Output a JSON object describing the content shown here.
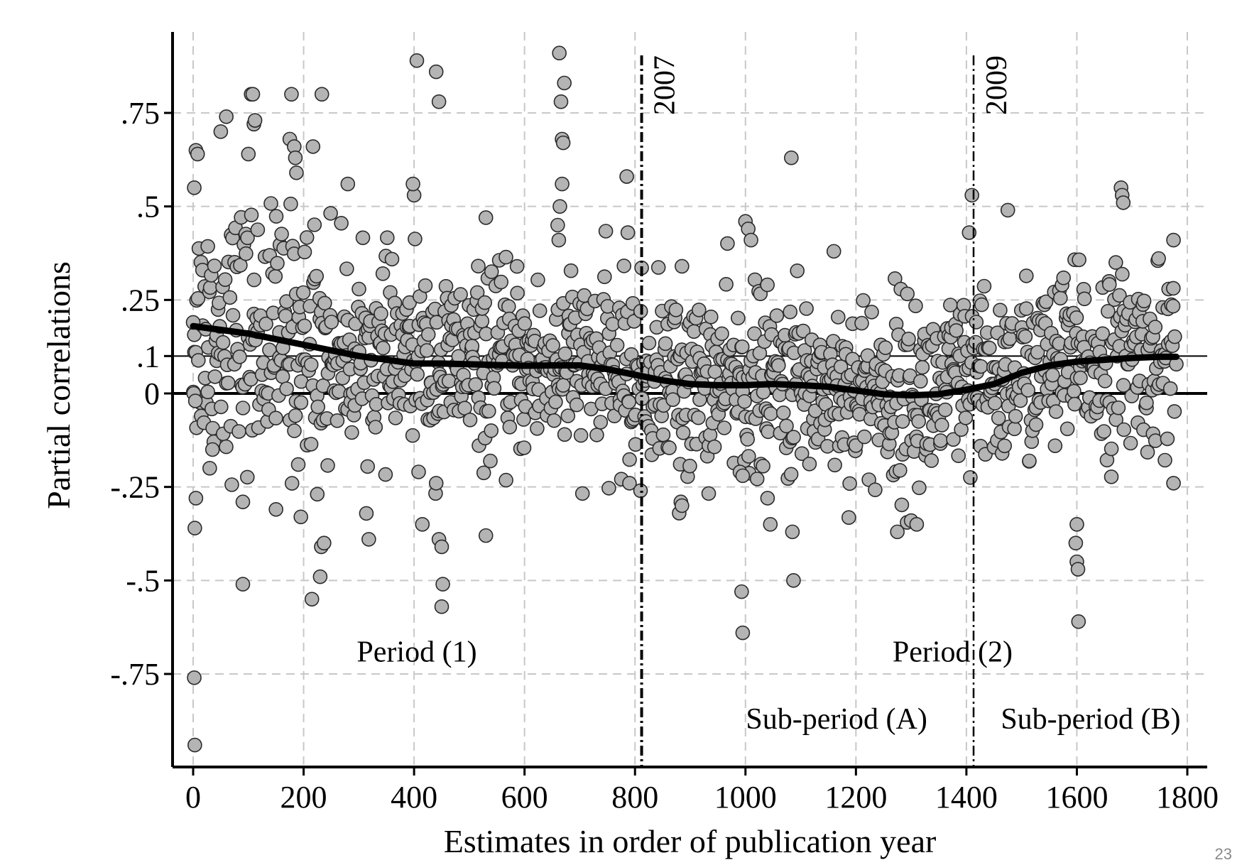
{
  "page_number": "23",
  "chart_data": {
    "type": "scatter",
    "xlabel": "Estimates in order of publication year",
    "ylabel": "Partial correlations",
    "xlim": [
      -30,
      1830
    ],
    "ylim": [
      -1.0,
      0.97
    ],
    "xticks": [
      0,
      200,
      400,
      600,
      800,
      1000,
      1200,
      1400,
      1600,
      1800
    ],
    "xtick_labels": [
      "0",
      "200",
      "400",
      "600",
      "800",
      "1000",
      "1200",
      "1400",
      "1600",
      "1800"
    ],
    "yticks": [
      -0.75,
      -0.5,
      -0.25,
      0,
      0.1,
      0.25,
      0.5,
      0.75
    ],
    "ytick_labels": [
      "-.75",
      "-.5",
      "-.25",
      "0",
      ".1",
      ".25",
      ".5",
      ".75"
    ],
    "grid": true,
    "reference_lines_y": [
      0,
      0.1
    ],
    "vertical_markers": [
      {
        "x": 812,
        "label": "2007"
      },
      {
        "x": 1413,
        "label": "2009"
      }
    ],
    "annotations": [
      {
        "text": "Period (1)",
        "x": 405,
        "y": -0.69
      },
      {
        "text": "Period (2)",
        "x": 1375,
        "y": -0.69
      },
      {
        "text": "Sub-period (A)",
        "x": 1165,
        "y": -0.87
      },
      {
        "text": "Sub-period (B)",
        "x": 1625,
        "y": -0.87
      }
    ],
    "smooth_line": {
      "x": [
        0,
        50,
        100,
        150,
        200,
        250,
        300,
        350,
        400,
        450,
        500,
        550,
        600,
        650,
        700,
        750,
        800,
        850,
        900,
        950,
        1000,
        1050,
        1100,
        1150,
        1200,
        1250,
        1300,
        1350,
        1400,
        1450,
        1500,
        1550,
        1600,
        1650,
        1700,
        1750,
        1780
      ],
      "y": [
        0.18,
        0.17,
        0.16,
        0.145,
        0.13,
        0.115,
        0.1,
        0.09,
        0.08,
        0.08,
        0.078,
        0.076,
        0.074,
        0.075,
        0.075,
        0.065,
        0.05,
        0.035,
        0.025,
        0.022,
        0.022,
        0.025,
        0.022,
        0.018,
        0.008,
        -0.002,
        -0.005,
        -0.002,
        0.01,
        0.025,
        0.055,
        0.075,
        0.085,
        0.09,
        0.095,
        0.098,
        0.098
      ]
    },
    "outliers": [
      {
        "x": 0,
        "y": 0.19
      },
      {
        "x": 2,
        "y": 0.55
      },
      {
        "x": 5,
        "y": 0.65
      },
      {
        "x": 8,
        "y": 0.64
      },
      {
        "x": 3,
        "y": -0.36
      },
      {
        "x": 5,
        "y": -0.28
      },
      {
        "x": 1,
        "y": 0.0
      },
      {
        "x": 4,
        "y": -0.02
      },
      {
        "x": 2,
        "y": -0.76
      },
      {
        "x": 3,
        "y": -0.94
      },
      {
        "x": 30,
        "y": -0.2
      },
      {
        "x": 35,
        "y": -0.15
      },
      {
        "x": 60,
        "y": 0.74
      },
      {
        "x": 50,
        "y": 0.7
      },
      {
        "x": 90,
        "y": -0.29
      },
      {
        "x": 90,
        "y": -0.51
      },
      {
        "x": 105,
        "y": 0.8
      },
      {
        "x": 108,
        "y": 0.8
      },
      {
        "x": 110,
        "y": 0.72
      },
      {
        "x": 112,
        "y": 0.73
      },
      {
        "x": 100,
        "y": 0.64
      },
      {
        "x": 178,
        "y": 0.8
      },
      {
        "x": 175,
        "y": 0.68
      },
      {
        "x": 183,
        "y": 0.66
      },
      {
        "x": 185,
        "y": 0.63
      },
      {
        "x": 187,
        "y": 0.59
      },
      {
        "x": 217,
        "y": 0.66
      },
      {
        "x": 233,
        "y": 0.8
      },
      {
        "x": 215,
        "y": -0.55
      },
      {
        "x": 230,
        "y": -0.49
      },
      {
        "x": 232,
        "y": -0.41
      },
      {
        "x": 237,
        "y": -0.4
      },
      {
        "x": 195,
        "y": -0.33
      },
      {
        "x": 150,
        "y": -0.31
      },
      {
        "x": 280,
        "y": 0.56
      },
      {
        "x": 318,
        "y": -0.39
      },
      {
        "x": 400,
        "y": 0.53
      },
      {
        "x": 398,
        "y": 0.56
      },
      {
        "x": 405,
        "y": 0.89
      },
      {
        "x": 440,
        "y": 0.86
      },
      {
        "x": 445,
        "y": 0.78
      },
      {
        "x": 415,
        "y": -0.35
      },
      {
        "x": 440,
        "y": -0.24
      },
      {
        "x": 445,
        "y": -0.39
      },
      {
        "x": 450,
        "y": -0.41
      },
      {
        "x": 452,
        "y": -0.51
      },
      {
        "x": 450,
        "y": -0.57
      },
      {
        "x": 530,
        "y": 0.47
      },
      {
        "x": 530,
        "y": -0.38
      },
      {
        "x": 663,
        "y": 0.91
      },
      {
        "x": 666,
        "y": 0.78
      },
      {
        "x": 668,
        "y": 0.68
      },
      {
        "x": 670,
        "y": 0.67
      },
      {
        "x": 672,
        "y": 0.83
      },
      {
        "x": 668,
        "y": 0.56
      },
      {
        "x": 664,
        "y": 0.5
      },
      {
        "x": 660,
        "y": 0.45
      },
      {
        "x": 662,
        "y": 0.41
      },
      {
        "x": 785,
        "y": 0.58
      },
      {
        "x": 787,
        "y": 0.43
      },
      {
        "x": 790,
        "y": -0.24
      },
      {
        "x": 810,
        "y": -0.26
      },
      {
        "x": 885,
        "y": 0.34
      },
      {
        "x": 880,
        "y": -0.32
      },
      {
        "x": 883,
        "y": -0.29
      },
      {
        "x": 885,
        "y": -0.3
      },
      {
        "x": 990,
        "y": -0.21
      },
      {
        "x": 995,
        "y": -0.22
      },
      {
        "x": 993,
        "y": -0.53
      },
      {
        "x": 995,
        "y": -0.64
      },
      {
        "x": 1000,
        "y": 0.46
      },
      {
        "x": 1005,
        "y": 0.44
      },
      {
        "x": 1010,
        "y": 0.41
      },
      {
        "x": 1083,
        "y": 0.63
      },
      {
        "x": 1085,
        "y": -0.37
      },
      {
        "x": 1087,
        "y": -0.5
      },
      {
        "x": 1045,
        "y": -0.35
      },
      {
        "x": 1040,
        "y": -0.28
      },
      {
        "x": 1160,
        "y": 0.38
      },
      {
        "x": 1275,
        "y": -0.37
      },
      {
        "x": 1300,
        "y": -0.34
      },
      {
        "x": 1310,
        "y": -0.35
      },
      {
        "x": 1405,
        "y": 0.43
      },
      {
        "x": 1410,
        "y": 0.53
      },
      {
        "x": 1475,
        "y": 0.49
      },
      {
        "x": 1600,
        "y": -0.35
      },
      {
        "x": 1598,
        "y": -0.4
      },
      {
        "x": 1600,
        "y": -0.45
      },
      {
        "x": 1602,
        "y": -0.47
      },
      {
        "x": 1603,
        "y": -0.61
      },
      {
        "x": 1680,
        "y": 0.55
      },
      {
        "x": 1682,
        "y": 0.53
      },
      {
        "x": 1684,
        "y": 0.51
      },
      {
        "x": 1775,
        "y": 0.41
      },
      {
        "x": 1775,
        "y": -0.24
      }
    ]
  }
}
